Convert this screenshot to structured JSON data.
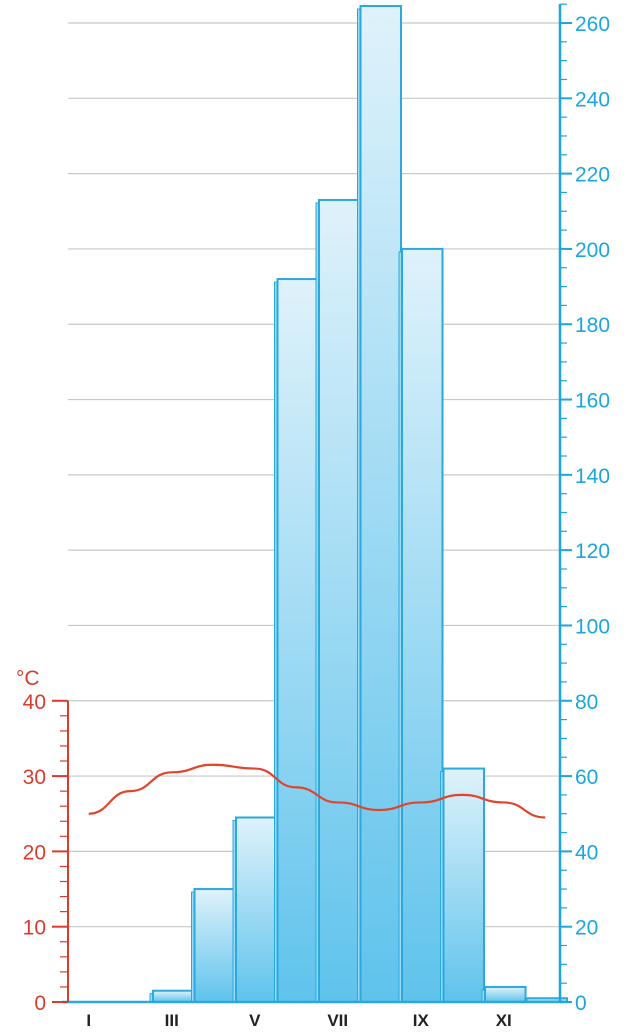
{
  "chart_data": {
    "type": "bar",
    "categories": [
      "I",
      "II",
      "III",
      "IV",
      "V",
      "VI",
      "VII",
      "VIII",
      "IX",
      "X",
      "XI",
      "XII"
    ],
    "x_tick_labels": [
      "I",
      "III",
      "V",
      "VII",
      "IX",
      "XI"
    ],
    "series": [
      {
        "axis": "right",
        "type": "bar",
        "values": [
          0,
          0,
          3,
          30,
          49,
          192,
          213,
          265,
          200,
          62,
          4,
          1
        ]
      },
      {
        "axis": "left",
        "type": "line",
        "values": [
          25,
          28,
          30.5,
          31.5,
          31,
          28.5,
          26.5,
          25.5,
          26.5,
          27.5,
          26.5,
          24.5
        ]
      }
    ],
    "left_axis": {
      "unit": "°C",
      "ylim": [
        0,
        40
      ],
      "ticks": [
        0,
        10,
        20,
        30,
        40
      ],
      "color": "#d93c2e"
    },
    "right_axis": {
      "ylim": [
        0,
        260
      ],
      "ticks": [
        0,
        20,
        40,
        60,
        80,
        100,
        120,
        140,
        160,
        180,
        200,
        220,
        240,
        260
      ],
      "color": "#1ba6dd"
    },
    "grid": true,
    "colors": {
      "bar_fill_top": "#dff2fb",
      "bar_fill_bottom": "#5fc3ec",
      "bar_stroke": "#2aa9df",
      "line": "#e0452c",
      "grid": "#c8c8c8"
    }
  }
}
